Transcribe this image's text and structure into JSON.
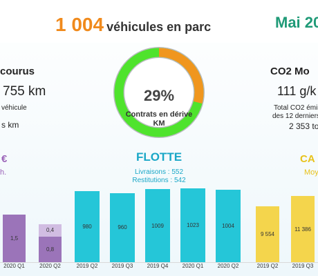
{
  "header": {
    "fleet_number": "1 004",
    "fleet_text": "véhicules en parc",
    "period": "Mai 20"
  },
  "distance_card": {
    "title": "courus",
    "value": "755 km",
    "sub": "véhicule",
    "sub2": "s km"
  },
  "co2_card": {
    "title": "CO2 Mo",
    "value": "111 g/k",
    "note_line1": "Total CO2 émis",
    "note_line2": "des 12 derniers",
    "total": "2 353 to"
  },
  "gauge": {
    "percent_text": "29%",
    "percent": 0.29,
    "label": "Contrats en dérive KM",
    "colors": {
      "derive": "#f0961e",
      "ok": "#4fe32d",
      "track": "#b9bcbf"
    }
  },
  "cost_left": {
    "title": "€",
    "sub": "h.",
    "color": "#9b63b8"
  },
  "fleet_panel": {
    "title": "FLOTTE",
    "livraisons": "Livraisons : 552",
    "restitutions": "Restitutions : 542",
    "color": "#1aa7c7"
  },
  "cost_right": {
    "title": "CA",
    "sub": "Moy",
    "color": "#e8c21b"
  },
  "chart_data": [
    {
      "type": "bar",
      "categories": [
        "2020 Q1",
        "2020 Q2"
      ],
      "series": [
        {
          "values": [
            1.5,
            0.8
          ],
          "labels": [
            "1,5",
            "0,8"
          ],
          "color": "#9b74b9"
        },
        {
          "values": [
            0,
            0.4
          ],
          "labels": [
            "",
            "0,4"
          ],
          "color": "#d1bde2"
        }
      ]
    },
    {
      "type": "bar",
      "categories": [
        "2019 Q2",
        "2019 Q3",
        "2019 Q4",
        "2020 Q1",
        "2020 Q2"
      ],
      "values": [
        980,
        960,
        1009,
        1023,
        1004
      ],
      "labels": [
        "980",
        "960",
        "1009",
        "1023",
        "1004"
      ],
      "color": "#25c6d8"
    },
    {
      "type": "bar",
      "categories": [
        "2019 Q2",
        "2019 Q3"
      ],
      "values": [
        9554,
        11386
      ],
      "labels": [
        "9 554",
        "11 386"
      ],
      "color": "#f4d54c"
    }
  ]
}
